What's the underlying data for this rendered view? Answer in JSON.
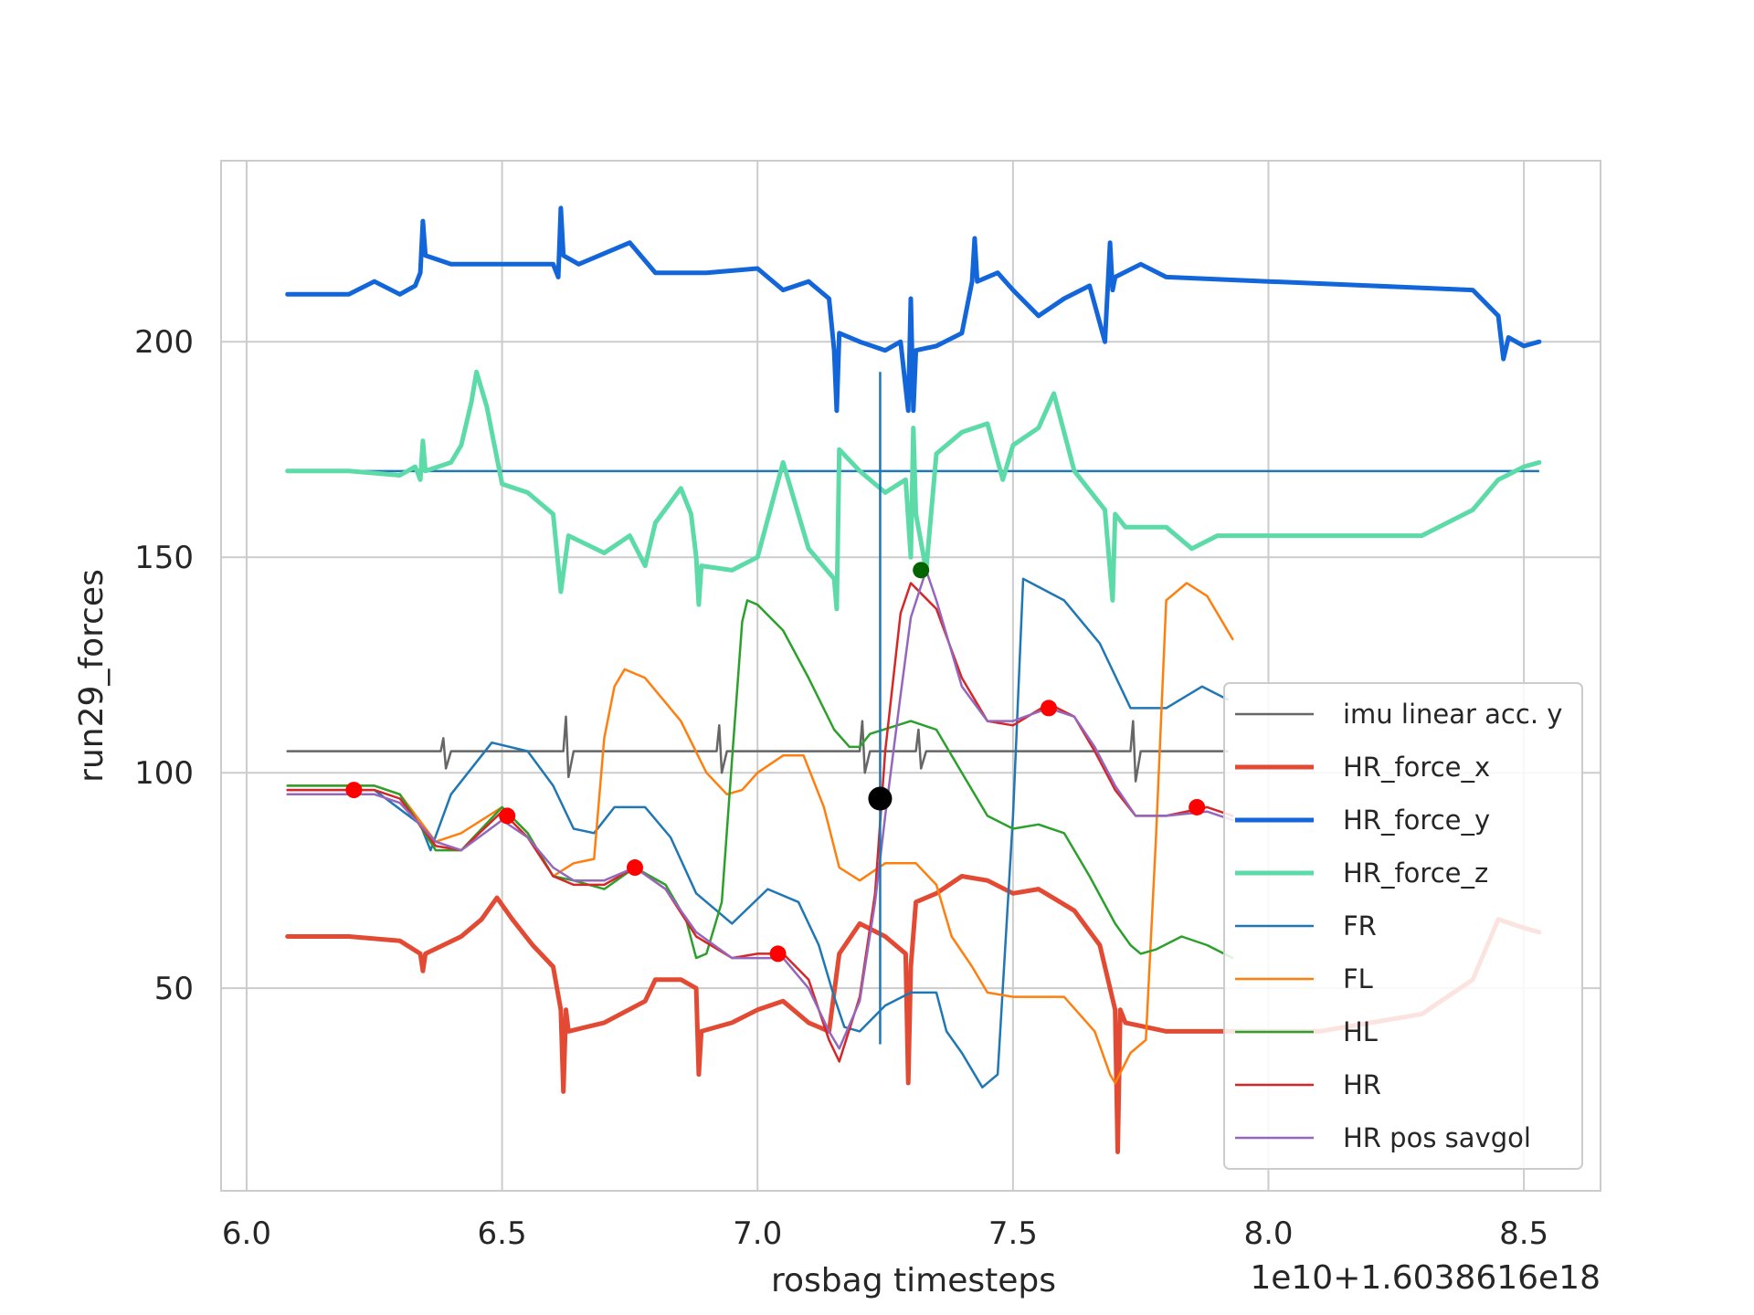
{
  "chart_data": {
    "type": "line",
    "xlabel": "rosbag timesteps",
    "ylabel": "run29_forces",
    "offset_label": "1e10+1.6038616e18",
    "xlim": [
      5.95,
      8.65
    ],
    "ylim": [
      3,
      242
    ],
    "x_ticks": [
      6.0,
      6.5,
      7.0,
      7.5,
      8.0,
      8.5
    ],
    "x_tick_labels": [
      "6.0",
      "6.5",
      "7.0",
      "7.5",
      "8.0",
      "8.5"
    ],
    "y_ticks": [
      50,
      100,
      150,
      200
    ],
    "y_tick_labels": [
      "50",
      "100",
      "150",
      "200"
    ],
    "grid": true,
    "legend_position": "lower-right",
    "series": [
      {
        "name": "imu linear acc. y",
        "color": "#666666",
        "width": 2.5,
        "x": [
          6.08,
          6.38,
          6.385,
          6.39,
          6.4,
          6.62,
          6.625,
          6.63,
          6.64,
          6.92,
          6.925,
          6.93,
          6.94,
          7.2,
          7.205,
          7.21,
          7.22,
          7.31,
          7.315,
          7.32,
          7.33,
          7.73,
          7.735,
          7.74,
          7.75,
          7.92
        ],
        "y": [
          105,
          105,
          108,
          101,
          105,
          105,
          113,
          99,
          105,
          105,
          111,
          100,
          105,
          105,
          112,
          100,
          105,
          105,
          110,
          101,
          105,
          105,
          112,
          98,
          105,
          105
        ]
      },
      {
        "name": "HR_force_x",
        "color": "#e24a33",
        "width": 5,
        "x": [
          6.08,
          6.2,
          6.3,
          6.34,
          6.345,
          6.35,
          6.42,
          6.46,
          6.49,
          6.52,
          6.56,
          6.6,
          6.615,
          6.62,
          6.625,
          6.63,
          6.7,
          6.78,
          6.8,
          6.85,
          6.88,
          6.885,
          6.89,
          6.95,
          7.0,
          7.05,
          7.1,
          7.14,
          7.16,
          7.2,
          7.25,
          7.29,
          7.295,
          7.3,
          7.31,
          7.35,
          7.4,
          7.45,
          7.5,
          7.55,
          7.62,
          7.67,
          7.7,
          7.705,
          7.71,
          7.72,
          7.8,
          7.9,
          8.1,
          8.3,
          8.4,
          8.45,
          8.5,
          8.53
        ],
        "y": [
          62,
          62,
          61,
          58,
          54,
          58,
          62,
          66,
          71,
          66,
          60,
          55,
          45,
          26,
          45,
          40,
          42,
          47,
          52,
          52,
          50,
          30,
          40,
          42,
          45,
          47,
          42,
          40,
          58,
          65,
          62,
          58,
          28,
          55,
          70,
          72,
          76,
          75,
          72,
          73,
          68,
          60,
          45,
          12,
          45,
          42,
          40,
          40,
          40,
          44,
          52,
          66,
          64,
          63
        ]
      },
      {
        "name": "HR_force_y",
        "color": "#1266d9",
        "width": 5,
        "x": [
          6.08,
          6.2,
          6.25,
          6.3,
          6.33,
          6.34,
          6.345,
          6.35,
          6.4,
          6.5,
          6.6,
          6.61,
          6.615,
          6.62,
          6.65,
          6.75,
          6.8,
          6.9,
          7.0,
          7.05,
          7.1,
          7.14,
          7.15,
          7.155,
          7.16,
          7.2,
          7.25,
          7.28,
          7.295,
          7.3,
          7.305,
          7.31,
          7.35,
          7.4,
          7.42,
          7.425,
          7.43,
          7.47,
          7.5,
          7.55,
          7.6,
          7.65,
          7.68,
          7.69,
          7.695,
          7.7,
          7.75,
          7.8,
          8.0,
          8.2,
          8.4,
          8.45,
          8.46,
          8.47,
          8.5,
          8.53
        ],
        "y": [
          211,
          211,
          214,
          211,
          213,
          216,
          228,
          220,
          218,
          218,
          218,
          215,
          231,
          220,
          218,
          223,
          216,
          216,
          217,
          212,
          214,
          210,
          198,
          184,
          202,
          200,
          198,
          200,
          184,
          210,
          184,
          198,
          199,
          202,
          214,
          224,
          214,
          216,
          212,
          206,
          210,
          213,
          200,
          223,
          212,
          215,
          218,
          215,
          214,
          213,
          212,
          206,
          196,
          201,
          199,
          200
        ]
      },
      {
        "name": "HR_force_z",
        "color": "#5cdba8",
        "width": 5,
        "x": [
          6.08,
          6.2,
          6.3,
          6.33,
          6.34,
          6.345,
          6.35,
          6.4,
          6.42,
          6.44,
          6.45,
          6.47,
          6.5,
          6.55,
          6.6,
          6.615,
          6.63,
          6.7,
          6.75,
          6.78,
          6.8,
          6.85,
          6.87,
          6.88,
          6.885,
          6.89,
          6.95,
          7.0,
          7.05,
          7.1,
          7.15,
          7.155,
          7.16,
          7.2,
          7.25,
          7.29,
          7.3,
          7.305,
          7.31,
          7.33,
          7.35,
          7.4,
          7.45,
          7.48,
          7.5,
          7.55,
          7.58,
          7.62,
          7.68,
          7.695,
          7.7,
          7.72,
          7.8,
          7.85,
          7.9,
          8.0,
          8.2,
          8.3,
          8.4,
          8.45,
          8.5,
          8.53
        ],
        "y": [
          170,
          170,
          169,
          171,
          168,
          177,
          170,
          172,
          176,
          186,
          193,
          185,
          167,
          165,
          160,
          142,
          155,
          151,
          155,
          148,
          158,
          166,
          160,
          150,
          139,
          148,
          147,
          150,
          172,
          152,
          145,
          138,
          175,
          170,
          165,
          168,
          150,
          180,
          160,
          147,
          174,
          179,
          181,
          168,
          176,
          180,
          188,
          170,
          161,
          140,
          160,
          157,
          157,
          152,
          155,
          155,
          155,
          155,
          161,
          168,
          171,
          172
        ]
      },
      {
        "name": "FR",
        "color": "#1f77b4",
        "width": 2.5,
        "x": [
          6.08,
          6.25,
          6.34,
          6.36,
          6.4,
          6.48,
          6.55,
          6.6,
          6.64,
          6.68,
          6.72,
          6.78,
          6.83,
          6.88,
          6.92,
          6.95,
          7.02,
          7.08,
          7.12,
          7.15,
          7.17,
          7.2,
          7.25,
          7.3,
          7.35,
          7.37,
          7.4,
          7.44,
          7.47,
          7.5,
          7.52,
          7.6,
          7.67,
          7.73,
          7.8,
          7.87,
          7.92
        ],
        "y": [
          96,
          96,
          88,
          82,
          95,
          107,
          105,
          97,
          87,
          86,
          92,
          92,
          85,
          72,
          68,
          65,
          73,
          70,
          60,
          48,
          41,
          40,
          46,
          49,
          49,
          40,
          35,
          27,
          30,
          90,
          145,
          140,
          130,
          115,
          115,
          120,
          117
        ]
      },
      {
        "name": "FL",
        "color": "#ff7f0e",
        "width": 2.5,
        "x": [
          6.08,
          6.25,
          6.3,
          6.37,
          6.42,
          6.5,
          6.55,
          6.6,
          6.64,
          6.68,
          6.7,
          6.72,
          6.74,
          6.78,
          6.85,
          6.9,
          6.94,
          6.97,
          7.0,
          7.05,
          7.09,
          7.13,
          7.16,
          7.2,
          7.25,
          7.31,
          7.35,
          7.38,
          7.42,
          7.45,
          7.5,
          7.6,
          7.66,
          7.69,
          7.7,
          7.73,
          7.76,
          7.78,
          7.8,
          7.84,
          7.88,
          7.93
        ],
        "y": [
          97,
          97,
          95,
          84,
          86,
          92,
          86,
          76,
          79,
          80,
          108,
          120,
          124,
          122,
          112,
          100,
          95,
          96,
          100,
          104,
          104,
          92,
          78,
          75,
          79,
          79,
          74,
          62,
          55,
          49,
          48,
          48,
          40,
          30,
          28,
          35,
          38,
          85,
          140,
          144,
          141,
          131
        ]
      },
      {
        "name": "HL",
        "color": "#2ca02c",
        "width": 2.5,
        "x": [
          6.08,
          6.25,
          6.3,
          6.37,
          6.42,
          6.5,
          6.55,
          6.6,
          6.64,
          6.7,
          6.76,
          6.82,
          6.86,
          6.88,
          6.9,
          6.93,
          6.95,
          6.97,
          6.98,
          7.0,
          7.05,
          7.1,
          7.15,
          7.18,
          7.2,
          7.22,
          7.3,
          7.35,
          7.4,
          7.45,
          7.5,
          7.55,
          7.6,
          7.65,
          7.7,
          7.73,
          7.75,
          7.78,
          7.83,
          7.88,
          7.93
        ],
        "y": [
          97,
          97,
          95,
          82,
          82,
          92,
          86,
          76,
          75,
          73,
          78,
          74,
          66,
          57,
          58,
          70,
          103,
          135,
          140,
          139,
          133,
          122,
          110,
          106,
          106,
          109,
          112,
          110,
          100,
          90,
          87,
          88,
          86,
          76,
          65,
          60,
          58,
          59,
          62,
          60,
          57
        ]
      },
      {
        "name": "HR",
        "color": "#d62728",
        "width": 2.5,
        "x": [
          6.08,
          6.25,
          6.3,
          6.37,
          6.42,
          6.5,
          6.55,
          6.6,
          6.64,
          6.7,
          6.76,
          6.82,
          6.88,
          6.95,
          7.0,
          7.05,
          7.1,
          7.14,
          7.16,
          7.2,
          7.23,
          7.25,
          7.28,
          7.3,
          7.35,
          7.4,
          7.45,
          7.5,
          7.57,
          7.62,
          7.66,
          7.7,
          7.74,
          7.8,
          7.88,
          7.93
        ],
        "y": [
          96,
          96,
          94,
          83,
          82,
          91,
          85,
          76,
          74,
          74,
          78,
          73,
          62,
          57,
          58,
          58,
          52,
          38,
          33,
          48,
          72,
          105,
          137,
          144,
          138,
          122,
          112,
          111,
          116,
          113,
          105,
          96,
          90,
          90,
          92,
          90
        ]
      },
      {
        "name": "HR pos savgol",
        "color": "#9467bd",
        "width": 2.5,
        "x": [
          6.08,
          6.25,
          6.3,
          6.37,
          6.42,
          6.5,
          6.55,
          6.6,
          6.64,
          6.7,
          6.76,
          6.82,
          6.88,
          6.95,
          7.0,
          7.05,
          7.1,
          7.14,
          7.16,
          7.2,
          7.23,
          7.25,
          7.28,
          7.3,
          7.33,
          7.35,
          7.4,
          7.45,
          7.5,
          7.57,
          7.62,
          7.66,
          7.7,
          7.74,
          7.8,
          7.88,
          7.93
        ],
        "y": [
          95,
          95,
          93,
          84,
          82,
          89,
          85,
          78,
          75,
          75,
          78,
          73,
          63,
          57,
          57,
          57,
          50,
          40,
          36,
          47,
          70,
          90,
          118,
          136,
          147,
          140,
          120,
          112,
          112,
          115,
          113,
          106,
          97,
          90,
          90,
          91,
          89
        ]
      }
    ],
    "overlays": {
      "hline": {
        "y": 170,
        "x_from": 6.08,
        "x_to": 8.53,
        "color": "#1f77b4"
      },
      "vline": {
        "x": 7.24,
        "y_from": 37,
        "y_to": 193,
        "color": "#1f77b4"
      },
      "red_markers": {
        "x": [
          6.21,
          6.51,
          6.76,
          7.04,
          7.57,
          7.86
        ],
        "y": [
          96,
          90,
          78,
          58,
          115,
          92
        ],
        "color": "#ff0000"
      },
      "black_marker": {
        "x": 7.24,
        "y": 94,
        "color": "#000000"
      },
      "green_marker": {
        "x": 7.32,
        "y": 147,
        "color": "#006400"
      }
    }
  }
}
